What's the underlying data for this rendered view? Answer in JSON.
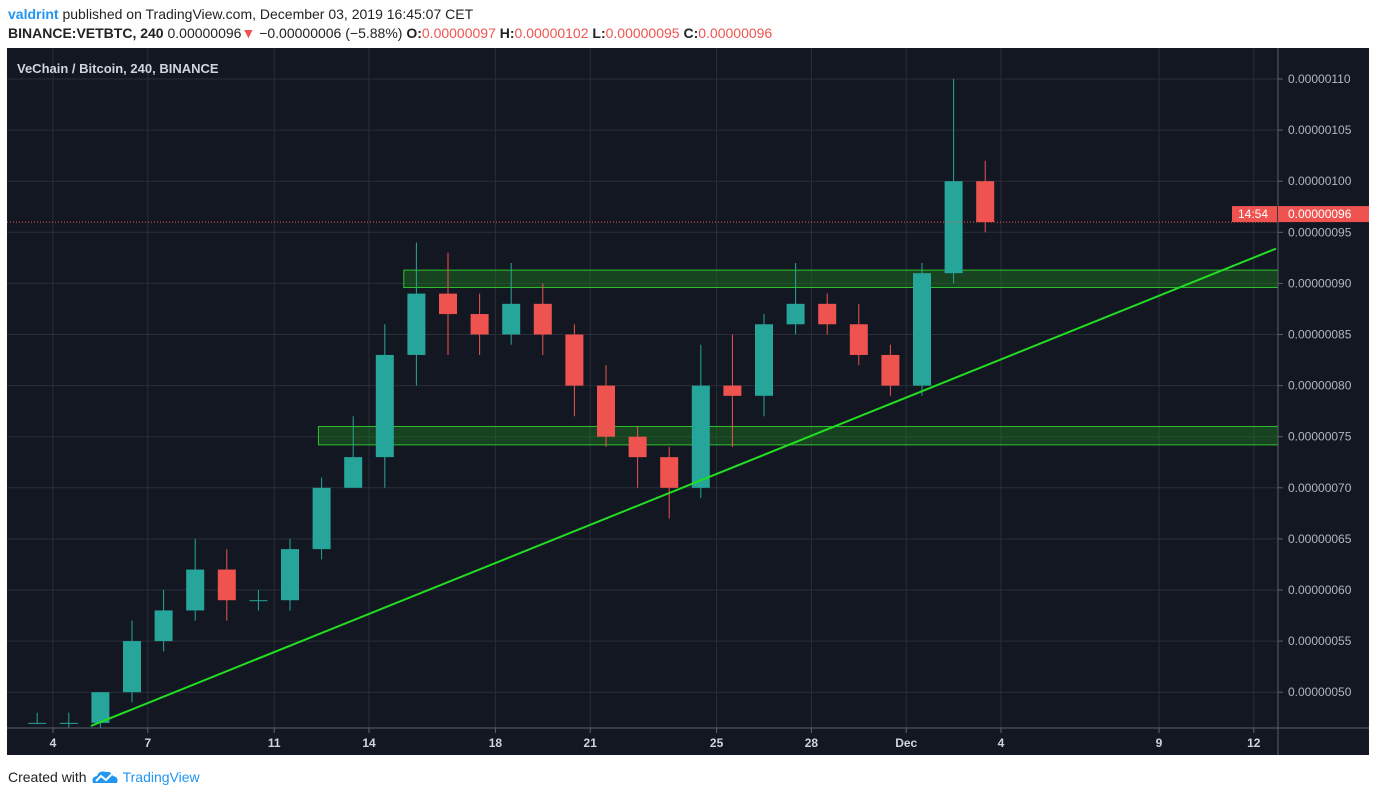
{
  "header": {
    "author": "valdrint",
    "published": "published on TradingView.com, December 03, 2019 16:45:07 CET",
    "symbol": "BINANCE:VETBTC, 240",
    "last": "0.00000096",
    "change": "−0.00000006 (−5.88%)",
    "o_label": "O:",
    "o": "0.00000097",
    "h_label": "H:",
    "h": "0.00000102",
    "l_label": "L:",
    "l": "0.00000095",
    "c_label": "C:",
    "c": "0.00000096"
  },
  "footer": {
    "created": "Created with",
    "brand": "TradingView"
  },
  "chart_data": {
    "type": "candlestick",
    "title": "VeChain / Bitcoin, 240, BINANCE",
    "interval": "240",
    "price_unit": "BTC",
    "note_units": "OHLC values in units of 0.00000001 BTC",
    "colors": {
      "background": "#131722",
      "up": "#26a69a",
      "down": "#ef5350",
      "grid": "#2a2e39",
      "trendline": "#22dd22",
      "zone": "#1e7a1e"
    },
    "x_ticks": [
      {
        "label": "4",
        "day": 4
      },
      {
        "label": "7",
        "day": 7
      },
      {
        "label": "11",
        "day": 11
      },
      {
        "label": "14",
        "day": 14
      },
      {
        "label": "18",
        "day": 18
      },
      {
        "label": "21",
        "day": 21
      },
      {
        "label": "25",
        "day": 25
      },
      {
        "label": "28",
        "day": 28
      },
      {
        "label": "Dec",
        "day": 31
      },
      {
        "label": "4",
        "day": 34
      },
      {
        "label": "9",
        "day": 39
      },
      {
        "label": "12",
        "day": 42
      }
    ],
    "y_ticks": [
      "0.00000050",
      "0.00000055",
      "0.00000060",
      "0.00000065",
      "0.00000070",
      "0.00000075",
      "0.00000080",
      "0.00000085",
      "0.00000090",
      "0.00000095",
      "0.00000100",
      "0.00000105",
      "0.00000110"
    ],
    "ylim": [
      45,
      113
    ],
    "xlim_days": [
      2.5,
      42.7
    ],
    "candles": [
      {
        "date": "Nov 3",
        "o": 47,
        "h": 48,
        "l": 47,
        "c": 47
      },
      {
        "date": "Nov 4",
        "o": 47,
        "h": 48,
        "l": 46,
        "c": 47
      },
      {
        "date": "Nov 5",
        "o": 47,
        "h": 50,
        "l": 46,
        "c": 50
      },
      {
        "date": "Nov 6",
        "o": 50,
        "h": 57,
        "l": 49,
        "c": 55
      },
      {
        "date": "Nov 7",
        "o": 55,
        "h": 60,
        "l": 54,
        "c": 58
      },
      {
        "date": "Nov 8",
        "o": 58,
        "h": 65,
        "l": 57,
        "c": 62
      },
      {
        "date": "Nov 9",
        "o": 62,
        "h": 64,
        "l": 57,
        "c": 59
      },
      {
        "date": "Nov 10",
        "o": 59,
        "h": 60,
        "l": 58,
        "c": 59
      },
      {
        "date": "Nov 11",
        "o": 59,
        "h": 65,
        "l": 58,
        "c": 64
      },
      {
        "date": "Nov 12",
        "o": 64,
        "h": 71,
        "l": 63,
        "c": 70
      },
      {
        "date": "Nov 13",
        "o": 70,
        "h": 77,
        "l": 70,
        "c": 73
      },
      {
        "date": "Nov 14",
        "o": 73,
        "h": 86,
        "l": 70,
        "c": 83
      },
      {
        "date": "Nov 15",
        "o": 83,
        "h": 94,
        "l": 80,
        "c": 89
      },
      {
        "date": "Nov 16",
        "o": 89,
        "h": 93,
        "l": 83,
        "c": 87
      },
      {
        "date": "Nov 17",
        "o": 87,
        "h": 89,
        "l": 83,
        "c": 85
      },
      {
        "date": "Nov 18",
        "o": 85,
        "h": 92,
        "l": 84,
        "c": 88
      },
      {
        "date": "Nov 19",
        "o": 88,
        "h": 90,
        "l": 83,
        "c": 85
      },
      {
        "date": "Nov 20",
        "o": 85,
        "h": 86,
        "l": 77,
        "c": 80
      },
      {
        "date": "Nov 21",
        "o": 80,
        "h": 82,
        "l": 74,
        "c": 75
      },
      {
        "date": "Nov 22",
        "o": 75,
        "h": 76,
        "l": 70,
        "c": 73
      },
      {
        "date": "Nov 23",
        "o": 73,
        "h": 74,
        "l": 67,
        "c": 70
      },
      {
        "date": "Nov 24",
        "o": 70,
        "h": 84,
        "l": 69,
        "c": 80
      },
      {
        "date": "Nov 25",
        "o": 80,
        "h": 85,
        "l": 74,
        "c": 79
      },
      {
        "date": "Nov 26",
        "o": 79,
        "h": 87,
        "l": 77,
        "c": 86
      },
      {
        "date": "Nov 27",
        "o": 86,
        "h": 92,
        "l": 85,
        "c": 88
      },
      {
        "date": "Nov 28",
        "o": 88,
        "h": 89,
        "l": 85,
        "c": 86
      },
      {
        "date": "Nov 29",
        "o": 86,
        "h": 88,
        "l": 82,
        "c": 83
      },
      {
        "date": "Nov 30",
        "o": 83,
        "h": 84,
        "l": 79,
        "c": 80
      },
      {
        "date": "Dec 1",
        "o": 80,
        "h": 92,
        "l": 79,
        "c": 91
      },
      {
        "date": "Dec 2",
        "o": 91,
        "h": 110,
        "l": 90,
        "c": 100
      },
      {
        "date": "Dec 3",
        "o": 100,
        "h": 102,
        "l": 95,
        "c": 96
      }
    ],
    "zones": [
      {
        "from_day": 15.1,
        "low": 89.6,
        "high": 91.3
      },
      {
        "from_day": 12.4,
        "low": 74.2,
        "high": 76.0
      }
    ],
    "trendline": {
      "day1": 5.2,
      "price1": 46.7,
      "day2": 42.7,
      "price2": 93.4
    },
    "last_price": {
      "label": "0.00000096",
      "value": 96,
      "countdown": "14:54"
    }
  }
}
